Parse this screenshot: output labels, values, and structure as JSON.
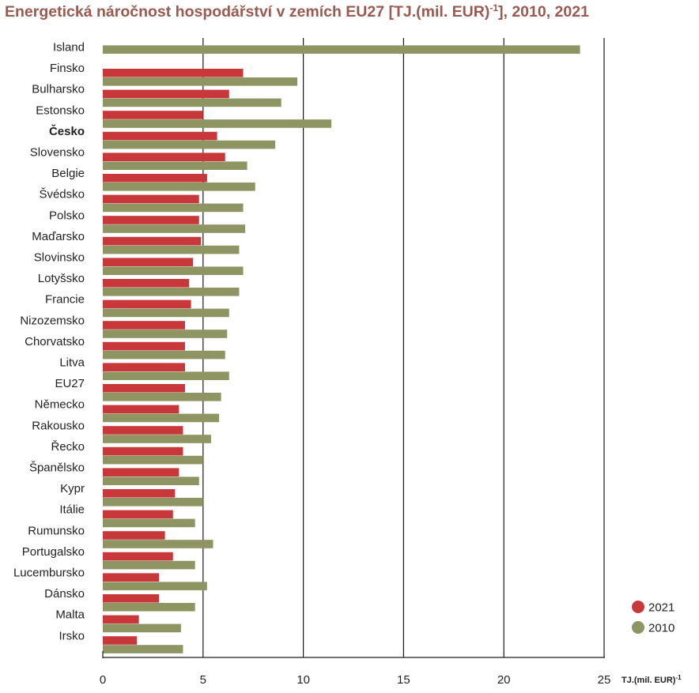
{
  "chart_data": {
    "type": "bar",
    "orientation": "horizontal",
    "title": "Energetická náročnost hospodářství v zemích EU27 [TJ.(mil. EUR)",
    "title_sup": "-1",
    "title_suffix": "], 2010, 2021",
    "unit_label": "TJ.(mil. EUR)",
    "unit_sup": "-1",
    "highlight_category": "Česko",
    "categories": [
      "Island",
      "Finsko",
      "Bulharsko",
      "Estonsko",
      "Česko",
      "Slovensko",
      "Belgie",
      "Švédsko",
      "Polsko",
      "Maďarsko",
      "Slovinsko",
      "Lotyšsko",
      "Francie",
      "Nizozemsko",
      "Chorvatsko",
      "Litva",
      "EU27",
      "Německo",
      "Rakousko",
      "Řecko",
      "Španělsko",
      "Kypr",
      "Itálie",
      "Rumunsko",
      "Portugalsko",
      "Lucembursko",
      "Dánsko",
      "Malta",
      "Irsko"
    ],
    "series": [
      {
        "name": "2021",
        "color": "#c8373a",
        "values": [
          null,
          7.0,
          6.3,
          5.0,
          5.7,
          6.1,
          5.2,
          4.8,
          4.8,
          4.9,
          4.5,
          4.3,
          4.4,
          4.1,
          4.1,
          4.1,
          4.1,
          3.8,
          4.0,
          4.0,
          3.8,
          3.6,
          3.5,
          3.1,
          3.5,
          2.8,
          2.8,
          1.8,
          1.7
        ]
      },
      {
        "name": "2010",
        "color": "#8f9463",
        "values": [
          23.8,
          9.7,
          8.9,
          11.4,
          8.6,
          7.2,
          7.6,
          7.0,
          7.1,
          6.8,
          7.0,
          6.8,
          6.3,
          6.2,
          6.1,
          6.3,
          5.9,
          5.8,
          5.4,
          5.0,
          4.8,
          5.0,
          4.6,
          5.5,
          4.6,
          5.2,
          4.6,
          3.9,
          4.0
        ]
      }
    ],
    "xlim": [
      0,
      25
    ],
    "ticks": [
      "0",
      "5",
      "10",
      "15",
      "20",
      "25"
    ],
    "grid": true,
    "legend_position": "bottom-right"
  }
}
